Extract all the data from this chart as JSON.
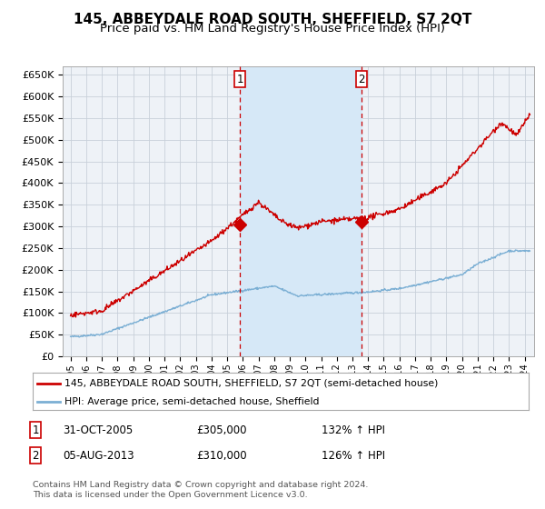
{
  "title": "145, ABBEYDALE ROAD SOUTH, SHEFFIELD, S7 2QT",
  "subtitle": "Price paid vs. HM Land Registry's House Price Index (HPI)",
  "title_fontsize": 11,
  "subtitle_fontsize": 9.5,
  "ylim": [
    0,
    670000
  ],
  "yticks": [
    0,
    50000,
    100000,
    150000,
    200000,
    250000,
    300000,
    350000,
    400000,
    450000,
    500000,
    550000,
    600000,
    650000
  ],
  "ytick_labels": [
    "£0",
    "£50K",
    "£100K",
    "£150K",
    "£200K",
    "£250K",
    "£300K",
    "£350K",
    "£400K",
    "£450K",
    "£500K",
    "£550K",
    "£600K",
    "£650K"
  ],
  "price_paid_color": "#cc0000",
  "hpi_color": "#7bafd4",
  "background_color": "#ffffff",
  "plot_bg_color": "#eef2f7",
  "shade_color": "#d6e8f7",
  "grid_color": "#c8d0da",
  "sale1_date_num": 2005.83,
  "sale1_price": 305000,
  "sale1_label": "1",
  "sale1_date_str": "31-OCT-2005",
  "sale1_pct": "132%",
  "sale2_date_num": 2013.58,
  "sale2_price": 310000,
  "sale2_label": "2",
  "sale2_date_str": "05-AUG-2013",
  "sale2_pct": "126%",
  "legend_label1": "145, ABBEYDALE ROAD SOUTH, SHEFFIELD, S7 2QT (semi-detached house)",
  "legend_label2": "HPI: Average price, semi-detached house, Sheffield",
  "footnote": "Contains HM Land Registry data © Crown copyright and database right 2024.\nThis data is licensed under the Open Government Licence v3.0.",
  "xmin": 1994.5,
  "xmax": 2024.6
}
